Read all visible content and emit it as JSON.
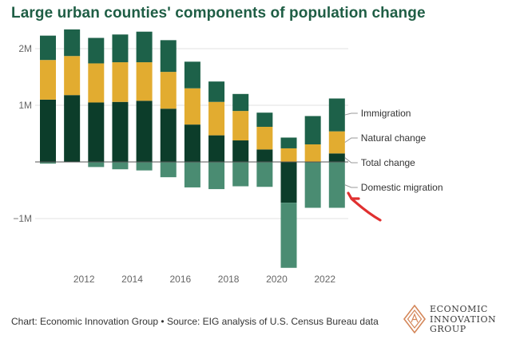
{
  "header": {
    "title": "Large urban counties' components of population change"
  },
  "footer": {
    "source": "Chart: Economic Innovation Group • Source: EIG analysis of U.S. Census Bureau data"
  },
  "logo": {
    "line1": "ECONOMIC",
    "line2": "INNOVATION",
    "line3": "GROUP"
  },
  "colors": {
    "title": "#1f5e45",
    "total_change": "#0c3d2a",
    "natural_change": "#e2ac30",
    "immigration": "#1d6149",
    "domestic_migration": "#4a8c72",
    "gridline": "#e0e0e0",
    "zero_line": "#555555",
    "annotation_arrow": "#e03030",
    "logo": "#d4875a"
  },
  "chart_data": {
    "type": "bar",
    "stacked": true,
    "x": [
      2011,
      2012,
      2013,
      2014,
      2015,
      2016,
      2017,
      2018,
      2019,
      2020,
      2021,
      2022,
      2023
    ],
    "x_tick_labels": [
      "2012",
      "2014",
      "2016",
      "2018",
      "2020",
      "2022"
    ],
    "x_ticks": [
      2012,
      2014,
      2016,
      2018,
      2020,
      2022
    ],
    "y_tick_labels": [
      "−1M",
      "1M",
      "2M"
    ],
    "y_ticks": [
      -1000000,
      1000000,
      2000000
    ],
    "ylim": [
      -2000000,
      2400000
    ],
    "grid": true,
    "legend": "right, inline labels",
    "series": [
      {
        "name": "Total change",
        "color_key": "total_change",
        "values": [
          1100000,
          1180000,
          1050000,
          1060000,
          1080000,
          940000,
          660000,
          470000,
          380000,
          220000,
          -720000,
          0,
          150000
        ]
      },
      {
        "name": "Natural change",
        "color_key": "natural_change",
        "values": [
          700000,
          690000,
          690000,
          700000,
          680000,
          650000,
          640000,
          590000,
          520000,
          400000,
          240000,
          310000,
          390000
        ]
      },
      {
        "name": "Immigration",
        "color_key": "immigration",
        "values": [
          430000,
          470000,
          450000,
          490000,
          540000,
          560000,
          470000,
          360000,
          300000,
          250000,
          190000,
          500000,
          580000
        ]
      },
      {
        "name": "Domestic migration",
        "color_key": "domestic_migration",
        "values": [
          -30000,
          0,
          -90000,
          -130000,
          -150000,
          -270000,
          -450000,
          -480000,
          -430000,
          -440000,
          -1150000,
          -810000,
          -810000
        ]
      }
    ],
    "legend_labels": [
      "Immigration",
      "Natural change",
      "Total change",
      "Domestic migration"
    ]
  }
}
